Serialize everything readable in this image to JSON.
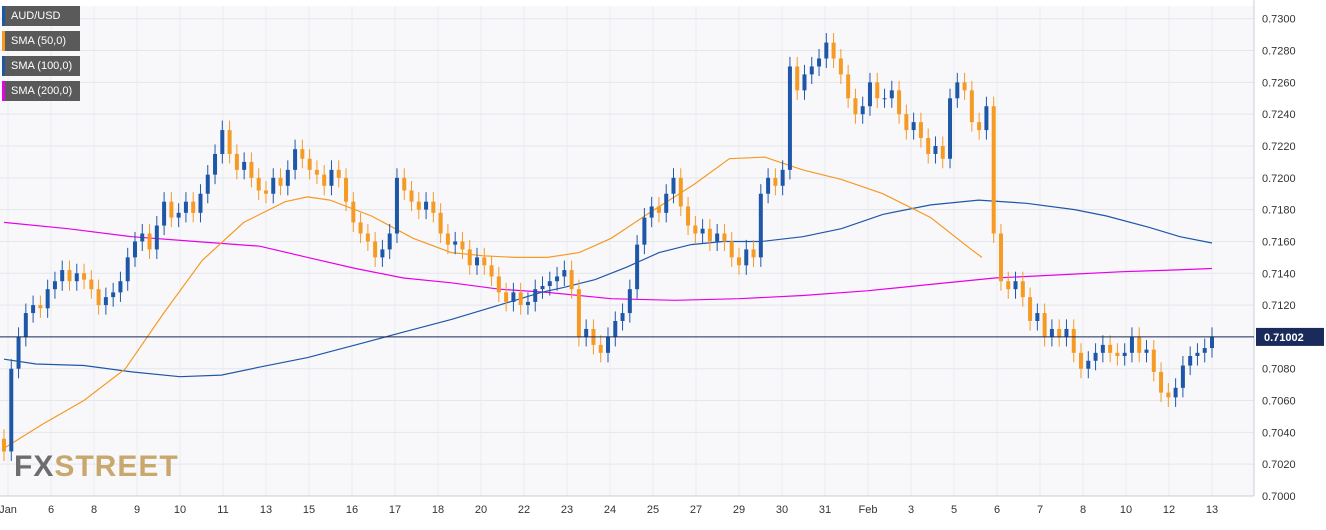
{
  "chart_data": {
    "type": "candlestick",
    "symbol": "AUD/USD",
    "ylim": [
      0.7,
      0.7308
    ],
    "y_ticks": [
      "0.7300",
      "0.7280",
      "0.7260",
      "0.7240",
      "0.7220",
      "0.7200",
      "0.7180",
      "0.7160",
      "0.7140",
      "0.7120",
      "0.7100",
      "0.7080",
      "0.7060",
      "0.7040",
      "0.7020",
      "0.7000"
    ],
    "x_ticks": [
      "Jan",
      "6",
      "8",
      "9",
      "10",
      "11",
      "13",
      "15",
      "16",
      "17",
      "18",
      "20",
      "22",
      "23",
      "24",
      "25",
      "27",
      "29",
      "30",
      "31",
      "Feb",
      "3",
      "5",
      "6",
      "7",
      "8",
      "10",
      "12",
      "13"
    ],
    "current_price": 0.71,
    "current_price_label": "0.71002",
    "colors": {
      "up": "#1f57a8",
      "down": "#f59a23",
      "sma50": "#f59a23",
      "sma100": "#1f57a8",
      "sma200": "#e800e8",
      "price_line": "#1a2a5a"
    },
    "legend": [
      {
        "label": "AUD/USD",
        "color": "#1f57a8"
      },
      {
        "label": "SMA (50,0)",
        "color": "#f59a23"
      },
      {
        "label": "SMA (100,0)",
        "color": "#1f57a8"
      },
      {
        "label": "SMA (200,0)",
        "color": "#e800e8"
      }
    ],
    "candle_closes": [
      0.7028,
      0.708,
      0.71,
      0.7115,
      0.712,
      0.7118,
      0.713,
      0.7135,
      0.7142,
      0.7135,
      0.714,
      0.7136,
      0.713,
      0.712,
      0.7125,
      0.7128,
      0.7135,
      0.715,
      0.716,
      0.7165,
      0.7155,
      0.717,
      0.7185,
      0.7175,
      0.7178,
      0.7185,
      0.7178,
      0.719,
      0.7202,
      0.7215,
      0.723,
      0.7215,
      0.7205,
      0.721,
      0.72,
      0.7192,
      0.719,
      0.72,
      0.7195,
      0.7205,
      0.7218,
      0.7212,
      0.7205,
      0.7202,
      0.7195,
      0.7205,
      0.72,
      0.7185,
      0.7172,
      0.7165,
      0.716,
      0.715,
      0.7155,
      0.7165,
      0.72,
      0.7192,
      0.7185,
      0.718,
      0.7185,
      0.7178,
      0.7165,
      0.7158,
      0.716,
      0.7155,
      0.7145,
      0.715,
      0.7145,
      0.7138,
      0.7128,
      0.7122,
      0.7128,
      0.712,
      0.7122,
      0.713,
      0.7132,
      0.7135,
      0.7138,
      0.7142,
      0.713,
      0.71,
      0.7105,
      0.7095,
      0.709,
      0.71,
      0.711,
      0.7115,
      0.713,
      0.7158,
      0.7175,
      0.7182,
      0.7178,
      0.719,
      0.72,
      0.7182,
      0.717,
      0.7165,
      0.7168,
      0.716,
      0.7165,
      0.716,
      0.715,
      0.7145,
      0.7155,
      0.715,
      0.719,
      0.72,
      0.7195,
      0.7205,
      0.727,
      0.7255,
      0.7265,
      0.727,
      0.7275,
      0.7285,
      0.7275,
      0.7265,
      0.725,
      0.724,
      0.7245,
      0.726,
      0.725,
      0.725,
      0.7255,
      0.724,
      0.723,
      0.7235,
      0.7225,
      0.7215,
      0.722,
      0.7212,
      0.725,
      0.726,
      0.7255,
      0.7235,
      0.723,
      0.7245,
      0.7165,
      0.7135,
      0.713,
      0.7135,
      0.7125,
      0.711,
      0.7115,
      0.71,
      0.7105,
      0.71,
      0.7105,
      0.709,
      0.708,
      0.7085,
      0.709,
      0.7095,
      0.709,
      0.7088,
      0.709,
      0.71,
      0.709,
      0.7092,
      0.7078,
      0.7065,
      0.7062,
      0.7068,
      0.7082,
      0.7088,
      0.709,
      0.7093,
      0.71
    ],
    "sma50": [
      [
        0,
        0.703
      ],
      [
        12,
        0.7045
      ],
      [
        25,
        0.706
      ],
      [
        38,
        0.708
      ],
      [
        50,
        0.7115
      ],
      [
        62,
        0.7148
      ],
      [
        75,
        0.7172
      ],
      [
        88,
        0.7185
      ],
      [
        95,
        0.7188
      ],
      [
        102,
        0.7186
      ],
      [
        115,
        0.7176
      ],
      [
        128,
        0.7162
      ],
      [
        140,
        0.7153
      ],
      [
        150,
        0.7151
      ],
      [
        160,
        0.715
      ],
      [
        170,
        0.715
      ],
      [
        180,
        0.7153
      ],
      [
        190,
        0.7162
      ],
      [
        202,
        0.7178
      ],
      [
        216,
        0.7196
      ],
      [
        227,
        0.7212
      ],
      [
        238,
        0.7213
      ],
      [
        250,
        0.7205
      ],
      [
        262,
        0.7199
      ],
      [
        275,
        0.719
      ],
      [
        290,
        0.7175
      ],
      [
        302,
        0.7156
      ],
      [
        306,
        0.715
      ]
    ],
    "sma100": [
      [
        0,
        0.7086
      ],
      [
        10,
        0.7083
      ],
      [
        25,
        0.7082
      ],
      [
        40,
        0.7078
      ],
      [
        55,
        0.7075
      ],
      [
        68,
        0.7076
      ],
      [
        80,
        0.7081
      ],
      [
        95,
        0.7087
      ],
      [
        110,
        0.7095
      ],
      [
        125,
        0.7103
      ],
      [
        140,
        0.7111
      ],
      [
        155,
        0.712
      ],
      [
        168,
        0.7128
      ],
      [
        175,
        0.7131
      ],
      [
        185,
        0.7136
      ],
      [
        195,
        0.7144
      ],
      [
        205,
        0.7153
      ],
      [
        215,
        0.7158
      ],
      [
        225,
        0.716
      ],
      [
        237,
        0.716
      ],
      [
        250,
        0.7163
      ],
      [
        262,
        0.7168
      ],
      [
        275,
        0.7177
      ],
      [
        290,
        0.7183
      ],
      [
        305,
        0.7186
      ],
      [
        320,
        0.7184
      ],
      [
        335,
        0.718
      ],
      [
        345,
        0.7176
      ],
      [
        358,
        0.7169
      ],
      [
        368,
        0.7163
      ],
      [
        378,
        0.7159
      ]
    ],
    "sma200": [
      [
        0,
        0.7172
      ],
      [
        20,
        0.7168
      ],
      [
        40,
        0.7163
      ],
      [
        60,
        0.716
      ],
      [
        80,
        0.7157
      ],
      [
        95,
        0.715
      ],
      [
        110,
        0.7143
      ],
      [
        125,
        0.7137
      ],
      [
        140,
        0.7134
      ],
      [
        155,
        0.713
      ],
      [
        170,
        0.7128
      ],
      [
        190,
        0.7124
      ],
      [
        210,
        0.7123
      ],
      [
        230,
        0.7124
      ],
      [
        250,
        0.7126
      ],
      [
        270,
        0.7129
      ],
      [
        290,
        0.7133
      ],
      [
        310,
        0.7137
      ],
      [
        330,
        0.7139
      ],
      [
        350,
        0.7141
      ],
      [
        365,
        0.7142
      ],
      [
        378,
        0.7143
      ]
    ]
  },
  "watermark": {
    "part1": "FX",
    "part2": "STREET"
  }
}
